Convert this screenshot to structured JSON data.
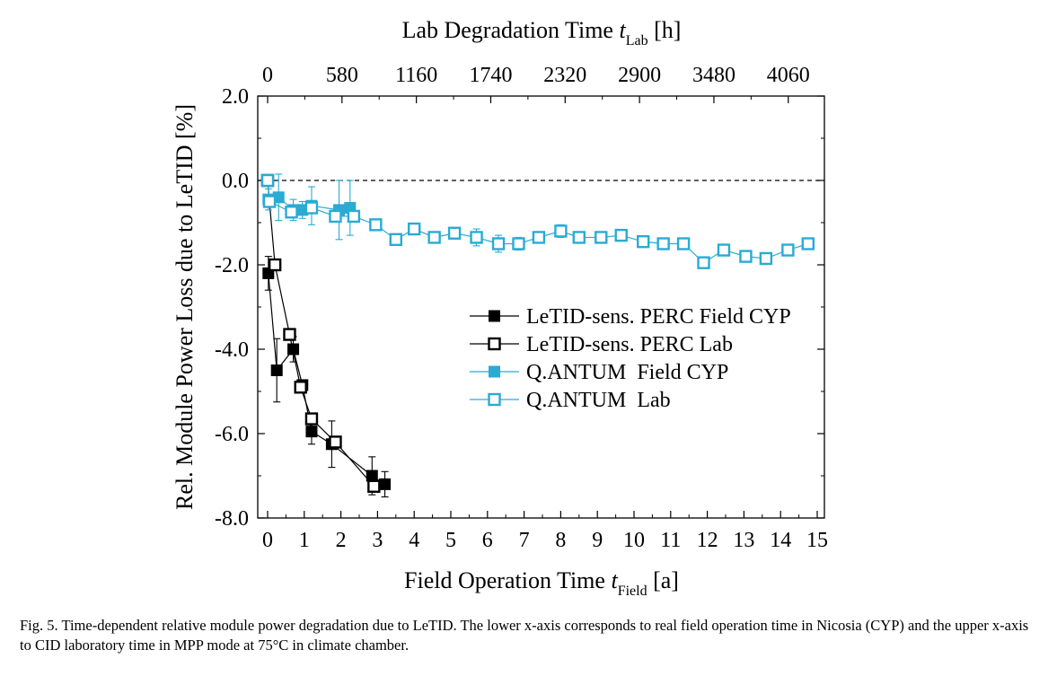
{
  "chart_data": {
    "type": "scatter",
    "title": "",
    "top_axis_label_main": "Lab Degradation Time ",
    "top_axis_label_var": "t",
    "top_axis_label_sub": "Lab",
    "top_axis_label_unit": " [h]",
    "bottom_axis_label_main": "Field Operation Time ",
    "bottom_axis_label_var": "t",
    "bottom_axis_label_sub": "Field",
    "bottom_axis_label_unit": " [a]",
    "ylabel": "Rel. Module Power Loss due to LeTID [%]",
    "xlim": [
      -0.3,
      15.3
    ],
    "ylim": [
      -8.0,
      2.0
    ],
    "x_ticks": [
      0,
      1,
      2,
      3,
      4,
      5,
      6,
      7,
      8,
      9,
      10,
      11,
      12,
      13,
      14,
      15
    ],
    "y_ticks": [
      -8.0,
      -6.0,
      -4.0,
      -2.0,
      0.0,
      2.0
    ],
    "y_tick_labels": [
      "-8.0",
      "-6.0",
      "-4.0",
      "-2.0",
      "0.0",
      "2.0"
    ],
    "top_ticks_x": [
      0,
      1,
      2,
      3,
      4,
      5,
      6,
      7
    ],
    "top_tick_labels": [
      "0",
      "580",
      "1160",
      "1740",
      "2320",
      "2900",
      "3480",
      "4060"
    ],
    "reference_line_y": 0.0,
    "legend_position": "center-right",
    "series": [
      {
        "name": "LeTID-sens. PERC Field CYP",
        "color": "#000000",
        "filled": true,
        "points": [
          {
            "x": 0.02,
            "y": -2.2,
            "err": 0.4
          },
          {
            "x": 0.25,
            "y": -4.5,
            "err": 0.75
          },
          {
            "x": 0.7,
            "y": -4.0,
            "err": 0.3
          },
          {
            "x": 0.95,
            "y": -4.85,
            "err": 0.1
          },
          {
            "x": 1.2,
            "y": -5.95,
            "err": 0.3
          },
          {
            "x": 1.75,
            "y": -6.25,
            "err": 0.55
          },
          {
            "x": 2.85,
            "y": -7.0,
            "err": 0.45
          },
          {
            "x": 3.2,
            "y": -7.2,
            "err": 0.3
          }
        ]
      },
      {
        "name": "LeTID-sens. PERC Lab",
        "color": "#000000",
        "filled": false,
        "points": [
          {
            "x": 0.0,
            "y": 0.0,
            "err": 0
          },
          {
            "x": 0.2,
            "y": -2.0,
            "err": 0.1
          },
          {
            "x": 0.6,
            "y": -3.65,
            "err": 0.1
          },
          {
            "x": 0.9,
            "y": -4.9,
            "err": 0.1
          },
          {
            "x": 1.2,
            "y": -5.65,
            "err": 0.1
          },
          {
            "x": 1.85,
            "y": -6.2,
            "err": 0.1
          },
          {
            "x": 2.9,
            "y": -7.25,
            "err": 0.1
          }
        ]
      },
      {
        "name": "Q.ANTUM  Field CYP",
        "color": "#29abd4",
        "filled": true,
        "points": [
          {
            "x": 0.02,
            "y": -0.45,
            "err": 0.25
          },
          {
            "x": 0.3,
            "y": -0.4,
            "err": 0.55
          },
          {
            "x": 0.7,
            "y": -0.7,
            "err": 0.25
          },
          {
            "x": 0.95,
            "y": -0.7,
            "err": 0.2
          },
          {
            "x": 1.2,
            "y": -0.6,
            "err": 0.45
          },
          {
            "x": 1.95,
            "y": -0.7,
            "err": 0.7
          },
          {
            "x": 2.25,
            "y": -0.65,
            "err": 0.65
          }
        ]
      },
      {
        "name": "Q.ANTUM  Lab",
        "color": "#29abd4",
        "filled": false,
        "points": [
          {
            "x": 0.0,
            "y": 0.0,
            "err": 0
          },
          {
            "x": 0.05,
            "y": -0.5,
            "err": 0.1
          },
          {
            "x": 0.65,
            "y": -0.75,
            "err": 0.1
          },
          {
            "x": 1.2,
            "y": -0.65,
            "err": 0.1
          },
          {
            "x": 1.85,
            "y": -0.85,
            "err": 0.1
          },
          {
            "x": 2.35,
            "y": -0.85,
            "err": 0.1
          },
          {
            "x": 2.95,
            "y": -1.05,
            "err": 0.1
          },
          {
            "x": 3.5,
            "y": -1.4,
            "err": 0.1
          },
          {
            "x": 4.0,
            "y": -1.15,
            "err": 0.1
          },
          {
            "x": 4.55,
            "y": -1.35,
            "err": 0.1
          },
          {
            "x": 5.1,
            "y": -1.25,
            "err": 0.1
          },
          {
            "x": 5.7,
            "y": -1.35,
            "err": 0.2
          },
          {
            "x": 6.3,
            "y": -1.5,
            "err": 0.2
          },
          {
            "x": 6.85,
            "y": -1.5,
            "err": 0.15
          },
          {
            "x": 7.4,
            "y": -1.35,
            "err": 0.1
          },
          {
            "x": 8.0,
            "y": -1.2,
            "err": 0.15
          },
          {
            "x": 8.5,
            "y": -1.35,
            "err": 0.1
          },
          {
            "x": 9.1,
            "y": -1.35,
            "err": 0.1
          },
          {
            "x": 9.65,
            "y": -1.3,
            "err": 0.1
          },
          {
            "x": 10.25,
            "y": -1.45,
            "err": 0.1
          },
          {
            "x": 10.8,
            "y": -1.5,
            "err": 0.1
          },
          {
            "x": 11.35,
            "y": -1.5,
            "err": 0.1
          },
          {
            "x": 11.9,
            "y": -1.95,
            "err": 0.1
          },
          {
            "x": 12.45,
            "y": -1.65,
            "err": 0.1
          },
          {
            "x": 13.05,
            "y": -1.8,
            "err": 0.1
          },
          {
            "x": 13.6,
            "y": -1.85,
            "err": 0.1
          },
          {
            "x": 14.2,
            "y": -1.65,
            "err": 0.1
          },
          {
            "x": 14.75,
            "y": -1.5,
            "err": 0.1
          }
        ]
      }
    ]
  },
  "caption": "Fig. 5. Time-dependent relative module power degradation due to LeTID. The lower x-axis corresponds to real field operation time in Nicosia (CYP) and the upper x-axis to CID laboratory time in MPP mode at 75°C in climate chamber."
}
